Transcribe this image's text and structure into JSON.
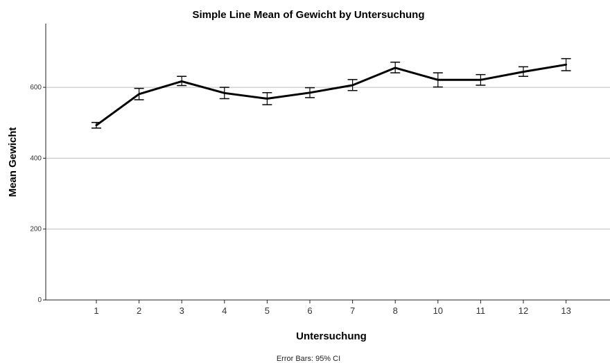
{
  "chart_data": {
    "type": "line",
    "title": "Simple Line Mean of Gewicht by Untersuchung",
    "xlabel": "Untersuchung",
    "ylabel": "Mean Gewicht",
    "footnote": "Error Bars: 95% CI",
    "categories": [
      "1",
      "2",
      "3",
      "4",
      "5",
      "6",
      "7",
      "8",
      "10",
      "11",
      "12",
      "13"
    ],
    "ylim": [
      0,
      780
    ],
    "yticks": [
      "0",
      "200",
      "400",
      "600"
    ],
    "grid": true,
    "series": [
      {
        "values": [
          493,
          581,
          617,
          584,
          568,
          585,
          606,
          655,
          621,
          621,
          644,
          664
        ],
        "ci_lower": [
          485,
          565,
          605,
          568,
          551,
          571,
          591,
          641,
          601,
          606,
          631,
          647
        ],
        "ci_upper": [
          501,
          597,
          631,
          600,
          585,
          599,
          622,
          671,
          641,
          636,
          658,
          681
        ]
      }
    ]
  }
}
